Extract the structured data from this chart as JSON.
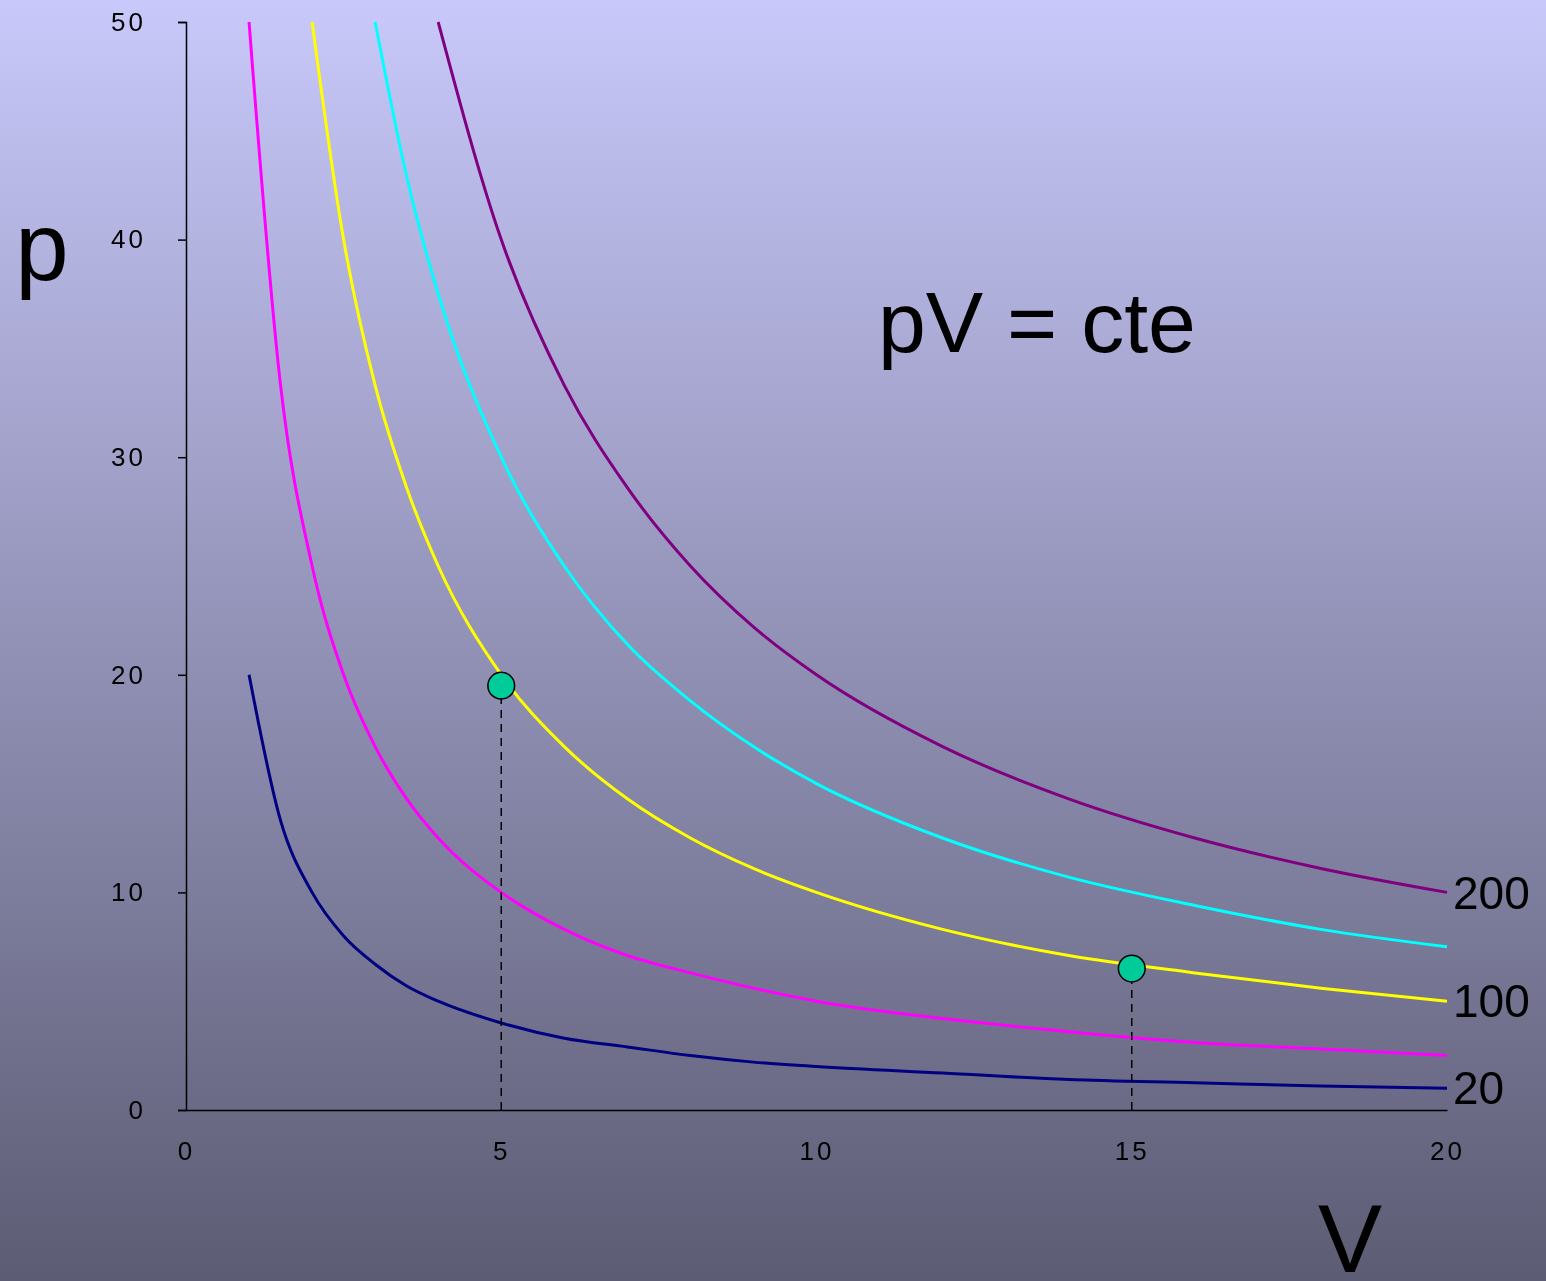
{
  "chart_data": {
    "type": "line",
    "xlabel": "V",
    "ylabel": "p",
    "xlim": [
      0,
      20
    ],
    "ylim": [
      0,
      50
    ],
    "xticks": [
      0,
      5,
      10,
      15,
      20
    ],
    "yticks": [
      0,
      10,
      20,
      30,
      40,
      50
    ],
    "grid": false,
    "marker": "none",
    "annotations": [
      "pV = cte"
    ],
    "series": [
      {
        "name": "20",
        "color": "#000080",
        "x": [
          1,
          1.5,
          2,
          2.5,
          3,
          3.5,
          4,
          5,
          6,
          7,
          8,
          9,
          10,
          12,
          14,
          16,
          18,
          20
        ],
        "values": [
          20,
          13.3,
          10,
          8,
          6.7,
          5.7,
          5,
          4,
          3.3,
          2.9,
          2.5,
          2.2,
          2,
          1.7,
          1.4,
          1.25,
          1.1,
          1
        ]
      },
      {
        "color": "#ff00ff",
        "x": [
          1,
          1.5,
          2,
          2.5,
          3,
          3.5,
          4,
          5,
          6,
          7,
          8,
          9,
          10,
          12,
          14,
          16,
          18,
          20
        ],
        "values": [
          50,
          33.3,
          25,
          20,
          16.7,
          14.3,
          12.5,
          10,
          8.3,
          7.1,
          6.3,
          5.6,
          5,
          4.2,
          3.6,
          3.1,
          2.8,
          2.5
        ]
      },
      {
        "name": "100",
        "color": "#ffff00",
        "x": [
          2,
          2.5,
          3,
          3.5,
          4,
          5,
          6,
          7,
          8,
          9,
          10,
          12,
          14,
          16,
          18,
          20
        ],
        "values": [
          50,
          40,
          33.3,
          28.6,
          25,
          20,
          16.7,
          14.3,
          12.5,
          11.1,
          10,
          8.3,
          7.1,
          6.3,
          5.6,
          5
        ]
      },
      {
        "color": "#00ffff",
        "x": [
          3,
          3.5,
          4,
          5,
          6,
          7,
          8,
          9,
          10,
          12,
          14,
          16,
          18,
          20
        ],
        "values": [
          50,
          42.9,
          37.5,
          30,
          25,
          21.4,
          18.8,
          16.7,
          15,
          12.5,
          10.7,
          9.4,
          8.3,
          7.5
        ]
      },
      {
        "name": "200",
        "color": "#800080",
        "x": [
          4,
          5,
          6,
          7,
          8,
          9,
          10,
          12,
          14,
          16,
          18,
          20
        ],
        "values": [
          50,
          40,
          33.3,
          28.6,
          25,
          22.2,
          20,
          16.7,
          14.3,
          12.5,
          11.1,
          10
        ]
      },
      {
        "type": "line",
        "line_style": "dashed",
        "color": "#000000",
        "x": [
          5,
          5
        ],
        "values": [
          0,
          19.5
        ]
      },
      {
        "type": "line",
        "line_style": "dashed",
        "color": "#000000",
        "x": [
          15,
          15
        ],
        "values": [
          0,
          6.5
        ]
      },
      {
        "type": "scatter",
        "marker": "circle",
        "color": "#00cc99",
        "x": [
          5,
          15
        ],
        "values": [
          19.5,
          6.5
        ]
      }
    ]
  }
}
